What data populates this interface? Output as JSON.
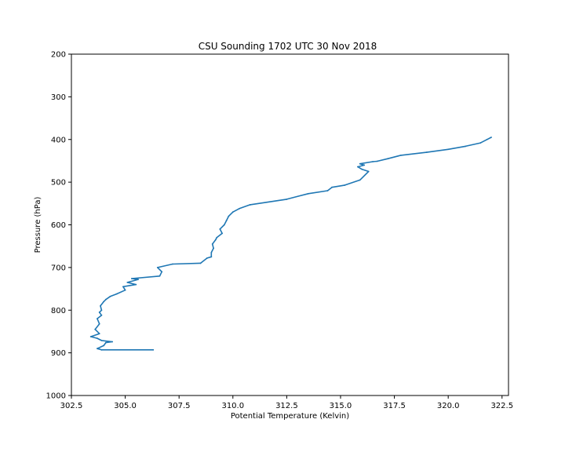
{
  "chart_data": {
    "type": "line",
    "title": "CSU Sounding 1702 UTC 30 Nov 2018",
    "xlabel": "Potential Temperature (Kelvin)",
    "ylabel": "Pressure (hPa)",
    "xlim": [
      302.5,
      322.8
    ],
    "ylim": [
      1000,
      200
    ],
    "y_inverted": true,
    "grid": false,
    "line_color": "#1f77b4",
    "x_ticks": [
      302.5,
      305.0,
      307.5,
      310.0,
      312.5,
      315.0,
      317.5,
      320.0,
      322.5
    ],
    "x_tick_labels": [
      "302.5",
      "305.0",
      "307.5",
      "310.0",
      "312.5",
      "315.0",
      "317.5",
      "320.0",
      "322.5"
    ],
    "y_ticks": [
      200,
      300,
      400,
      500,
      600,
      700,
      800,
      900,
      1000
    ],
    "y_tick_labels": [
      "200",
      "300",
      "400",
      "500",
      "600",
      "700",
      "800",
      "900",
      "1000"
    ],
    "series": [
      {
        "x": [
          306.3,
          303.9,
          303.7,
          304.0,
          304.1,
          304.4,
          303.9,
          303.7,
          303.4,
          303.8,
          303.6,
          303.8,
          303.7,
          303.9,
          303.8,
          303.9,
          303.85,
          304.0,
          304.1,
          304.3,
          304.6,
          305.0,
          304.9,
          305.5,
          305.1,
          305.6,
          305.3,
          306.6,
          306.7,
          306.5,
          307.2,
          308.5,
          308.8,
          309.0,
          309.0,
          309.1,
          309.05,
          309.2,
          309.25,
          309.5,
          309.4,
          309.6,
          309.7,
          309.8,
          310.0,
          310.3,
          310.8,
          312.5,
          313.5,
          314.4,
          314.6,
          315.2,
          315.9,
          316.3,
          316.0,
          315.8,
          316.1,
          315.9,
          316.5,
          316.7,
          317.2,
          317.8,
          319.0,
          320.0,
          320.8,
          321.5,
          321.8,
          322.0
        ],
        "y": [
          893,
          893,
          890,
          883,
          876,
          874,
          871,
          866,
          862,
          855,
          845,
          832,
          820,
          812,
          805,
          800,
          790,
          780,
          775,
          768,
          762,
          753,
          745,
          740,
          735,
          728,
          726,
          720,
          710,
          700,
          692,
          690,
          678,
          675,
          665,
          655,
          645,
          635,
          630,
          620,
          610,
          600,
          590,
          580,
          570,
          562,
          553,
          540,
          527,
          520,
          512,
          507,
          495,
          475,
          470,
          464,
          460,
          457,
          452,
          451,
          445,
          437,
          430,
          423,
          416,
          408,
          400,
          395
        ]
      }
    ]
  }
}
